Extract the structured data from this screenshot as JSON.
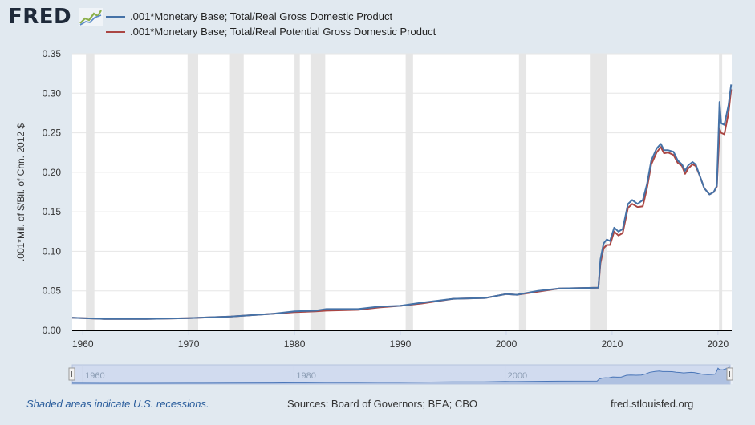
{
  "logo": {
    "text": "FRED"
  },
  "footer": {
    "recession_note": "Shaded areas indicate U.S. recessions.",
    "sources": "Sources: Board of Governors; BEA; CBO",
    "site": "fred.stlouisfed.org"
  },
  "colors": {
    "series1": "#4572a7",
    "series2": "#aa4643",
    "recession": "#e6e6e6",
    "navigator_fill": "#afc1e1",
    "navigator_line": "#4a76b8"
  },
  "chart_data": {
    "type": "line",
    "title": "",
    "xlabel": "",
    "ylabel": ".001*Mil. of $/Bil. of Chn. 2012 $",
    "xlim": [
      1959,
      2021.3
    ],
    "ylim": [
      0,
      0.35
    ],
    "x_ticks": [
      "1960",
      "1970",
      "1980",
      "1990",
      "2000",
      "2010",
      "2020"
    ],
    "y_ticks": [
      "0.00",
      "0.05",
      "0.10",
      "0.15",
      "0.20",
      "0.25",
      "0.30",
      "0.35"
    ],
    "navigator_labels": [
      "1960",
      "1980",
      "2000"
    ],
    "grid": true,
    "legend_placement": "top-left",
    "recessions": [
      [
        1960.3,
        1961.1
      ],
      [
        1969.9,
        1970.9
      ],
      [
        1973.9,
        1975.2
      ],
      [
        1980.0,
        1980.5
      ],
      [
        1981.5,
        1982.9
      ],
      [
        1990.5,
        1991.2
      ],
      [
        2001.2,
        2001.9
      ],
      [
        2007.9,
        2009.5
      ],
      [
        2020.1,
        2020.4
      ]
    ],
    "series": [
      {
        "name": ".001*Monetary Base; Total/Real Gross Domestic Product",
        "color": "#4572a7",
        "x": [
          1959,
          1962,
          1966,
          1970,
          1974,
          1978,
          1980,
          1982,
          1983,
          1986,
          1988,
          1990,
          1992,
          1995,
          1998,
          2000,
          2001,
          2003,
          2005,
          2008.7,
          2008.9,
          2009.2,
          2009.5,
          2009.8,
          2010.2,
          2010.6,
          2011.0,
          2011.5,
          2011.9,
          2012.4,
          2012.9,
          2013.3,
          2013.7,
          2014.2,
          2014.6,
          2014.9,
          2015.3,
          2015.8,
          2016.2,
          2016.6,
          2016.9,
          2017.2,
          2017.6,
          2017.9,
          2018.3,
          2018.7,
          2019.2,
          2019.6,
          2019.9,
          2020.15,
          2020.3,
          2020.6,
          2021.0,
          2021.25
        ],
        "values": [
          0.016,
          0.0145,
          0.0145,
          0.0155,
          0.0175,
          0.021,
          0.024,
          0.025,
          0.027,
          0.027,
          0.03,
          0.031,
          0.035,
          0.04,
          0.041,
          0.046,
          0.045,
          0.05,
          0.053,
          0.054,
          0.09,
          0.11,
          0.115,
          0.113,
          0.13,
          0.125,
          0.128,
          0.16,
          0.165,
          0.16,
          0.165,
          0.185,
          0.215,
          0.23,
          0.236,
          0.228,
          0.228,
          0.226,
          0.215,
          0.21,
          0.202,
          0.209,
          0.213,
          0.21,
          0.195,
          0.18,
          0.172,
          0.175,
          0.183,
          0.289,
          0.262,
          0.26,
          0.285,
          0.311
        ]
      },
      {
        "name": ".001*Monetary Base; Total/Real Potential Gross Domestic Product",
        "color": "#aa4643",
        "x": [
          1959,
          1962,
          1966,
          1970,
          1974,
          1978,
          1980,
          1982,
          1983,
          1986,
          1988,
          1990,
          1992,
          1995,
          1998,
          2000,
          2001,
          2003,
          2005,
          2008.7,
          2008.9,
          2009.2,
          2009.5,
          2009.8,
          2010.2,
          2010.6,
          2011.0,
          2011.5,
          2011.9,
          2012.4,
          2012.9,
          2013.3,
          2013.7,
          2014.2,
          2014.6,
          2014.9,
          2015.3,
          2015.8,
          2016.2,
          2016.6,
          2016.9,
          2017.2,
          2017.6,
          2017.9,
          2018.3,
          2018.7,
          2019.2,
          2019.6,
          2019.9,
          2020.15,
          2020.3,
          2020.6,
          2021.0,
          2021.25
        ],
        "values": [
          0.016,
          0.0145,
          0.0145,
          0.0155,
          0.0175,
          0.021,
          0.023,
          0.024,
          0.025,
          0.026,
          0.029,
          0.031,
          0.034,
          0.04,
          0.041,
          0.046,
          0.045,
          0.049,
          0.053,
          0.054,
          0.085,
          0.104,
          0.108,
          0.108,
          0.125,
          0.12,
          0.123,
          0.155,
          0.16,
          0.156,
          0.157,
          0.18,
          0.21,
          0.225,
          0.232,
          0.224,
          0.225,
          0.222,
          0.212,
          0.208,
          0.198,
          0.205,
          0.21,
          0.208,
          0.195,
          0.18,
          0.172,
          0.175,
          0.182,
          0.255,
          0.25,
          0.248,
          0.275,
          0.305
        ]
      }
    ]
  }
}
